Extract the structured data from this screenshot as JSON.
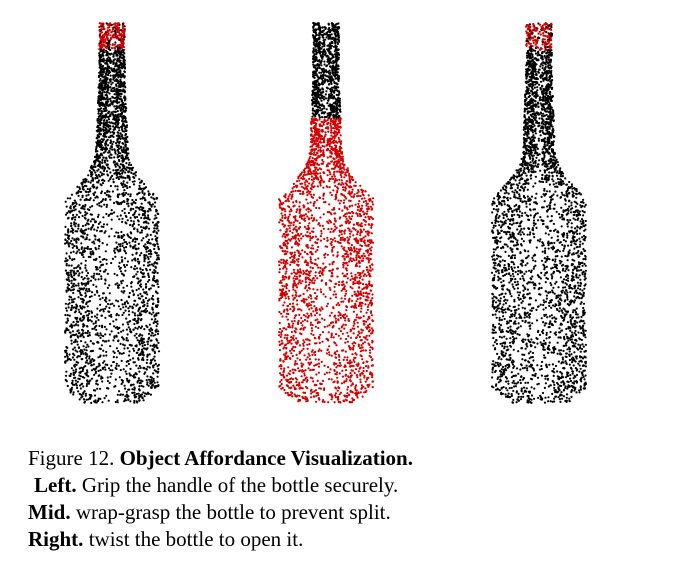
{
  "figure": {
    "colors": {
      "point": "#000000",
      "affordance": "#d40000"
    },
    "panels": [
      {
        "id": "left",
        "affordance_region": "cap"
      },
      {
        "id": "mid",
        "affordance_region": "shoulder-and-body"
      },
      {
        "id": "right",
        "affordance_region": "cap"
      }
    ]
  },
  "caption": {
    "fig_number": "Figure 12.",
    "title": "Object Affordance Visualization.",
    "items": [
      {
        "label": "Left.",
        "text": "Grip the handle of the bottle securely."
      },
      {
        "label": "Mid.",
        "text": "wrap-grasp the bottle to prevent split."
      },
      {
        "label": "Right.",
        "text": "twist the bottle to open it."
      }
    ]
  }
}
